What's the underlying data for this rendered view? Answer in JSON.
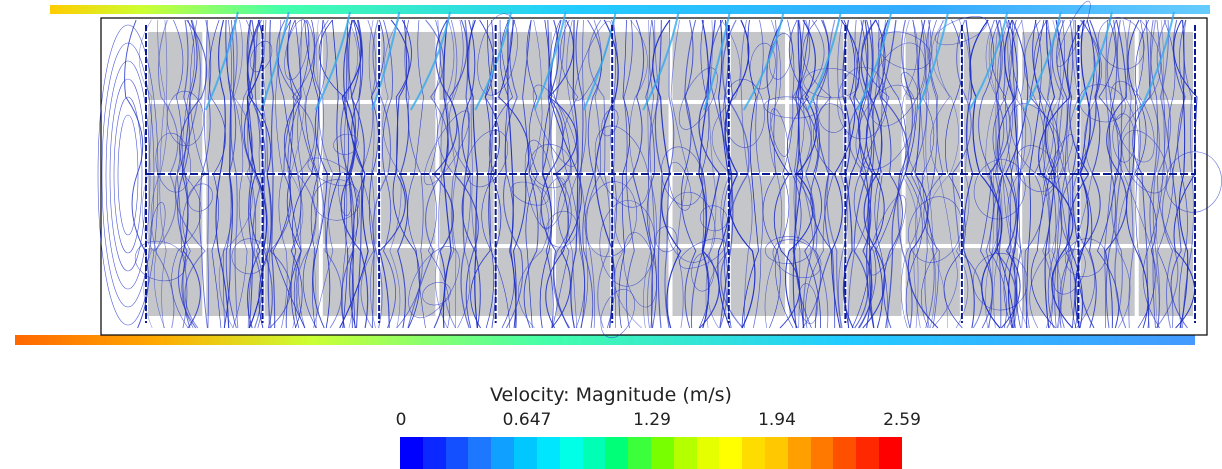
{
  "legend": {
    "title": "Velocity: Magnitude (m/s)",
    "ticks": [
      "0",
      "0.647",
      "1.29",
      "1.94",
      "2.59"
    ],
    "min": 0,
    "max": 2.59,
    "colors": [
      "#0000ff",
      "#0a28ff",
      "#1450ff",
      "#1e78ff",
      "#10a0ff",
      "#00c8ff",
      "#00e6ff",
      "#00ffe6",
      "#00ffb4",
      "#00ff78",
      "#3cff3c",
      "#78ff00",
      "#b4ff00",
      "#e6ff00",
      "#ffff00",
      "#ffdc00",
      "#ffc800",
      "#ffa000",
      "#ff7800",
      "#ff5000",
      "#ff2800",
      "#ff0000"
    ]
  },
  "domain": {
    "columns": 9,
    "rows": 2,
    "streamline_color": "#1f2fc8",
    "background_block_color": "#c4c6ca",
    "jet_colors": [
      "#2266ff",
      "#22ccff",
      "#44ff99",
      "#ccff33",
      "#ffcc00",
      "#ff6600"
    ]
  }
}
